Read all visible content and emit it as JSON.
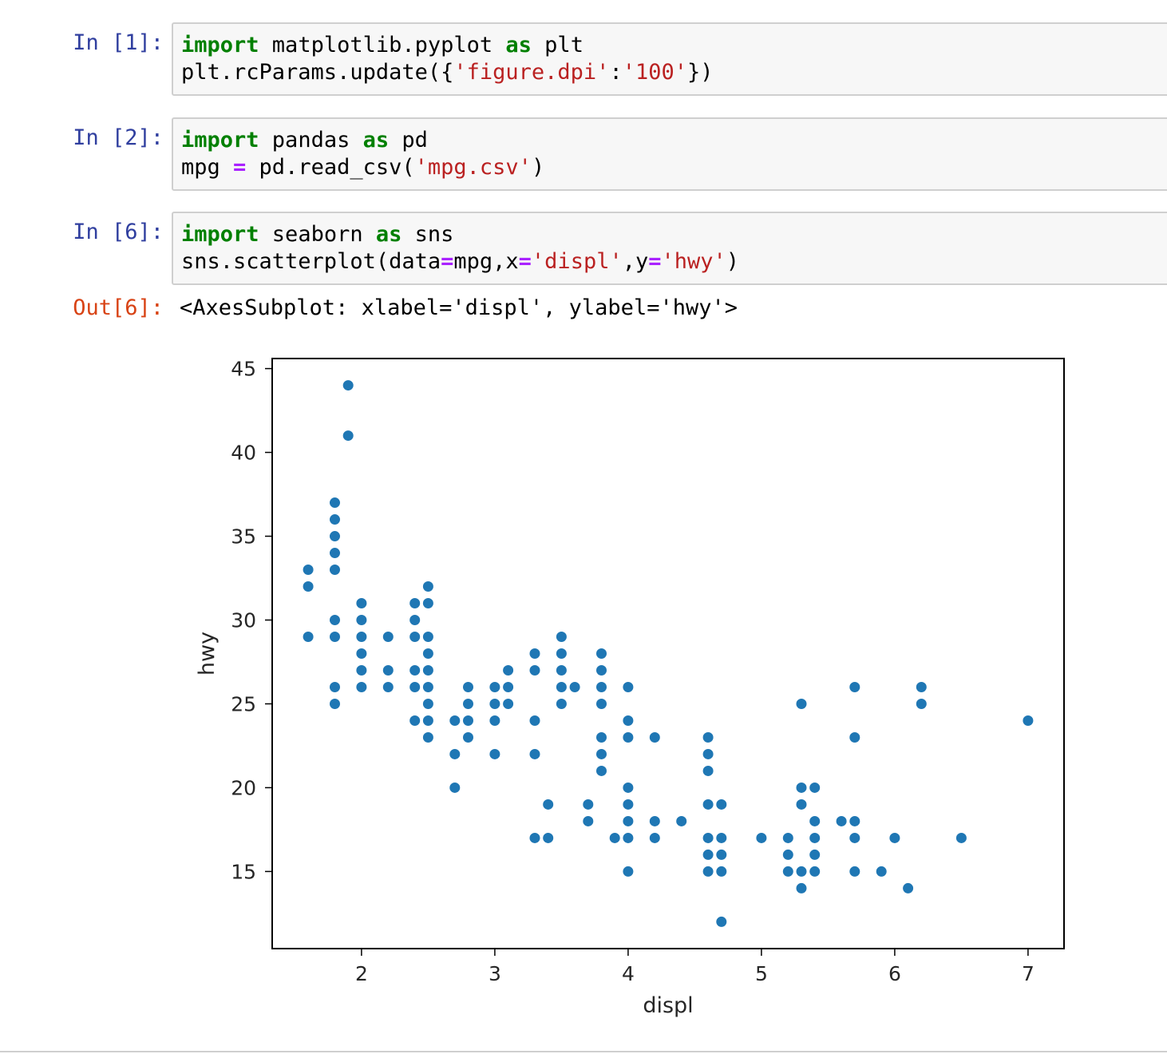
{
  "cells": [
    {
      "prompt": "In [1]:",
      "lines": [
        [
          {
            "t": "kw",
            "v": "import"
          },
          {
            "t": "n",
            "v": " matplotlib.pyplot "
          },
          {
            "t": "kw",
            "v": "as"
          },
          {
            "t": "n",
            "v": " plt"
          }
        ],
        [
          {
            "t": "n",
            "v": "plt.rcParams.update({"
          },
          {
            "t": "str",
            "v": "'figure.dpi'"
          },
          {
            "t": "n",
            "v": ":"
          },
          {
            "t": "str",
            "v": "'100'"
          },
          {
            "t": "n",
            "v": "})"
          }
        ]
      ]
    },
    {
      "prompt": "In [2]:",
      "lines": [
        [
          {
            "t": "kw",
            "v": "import"
          },
          {
            "t": "n",
            "v": " pandas "
          },
          {
            "t": "kw",
            "v": "as"
          },
          {
            "t": "n",
            "v": " pd"
          }
        ],
        [
          {
            "t": "n",
            "v": "mpg "
          },
          {
            "t": "op",
            "v": "="
          },
          {
            "t": "n",
            "v": " pd.read_csv("
          },
          {
            "t": "str",
            "v": "'mpg.csv'"
          },
          {
            "t": "n",
            "v": ")"
          }
        ]
      ]
    },
    {
      "prompt": "In [6]:",
      "lines": [
        [
          {
            "t": "kw",
            "v": "import"
          },
          {
            "t": "n",
            "v": " seaborn "
          },
          {
            "t": "kw",
            "v": "as"
          },
          {
            "t": "n",
            "v": " sns"
          }
        ],
        [
          {
            "t": "n",
            "v": "sns.scatterplot(data"
          },
          {
            "t": "op",
            "v": "="
          },
          {
            "t": "n",
            "v": "mpg,x"
          },
          {
            "t": "op",
            "v": "="
          },
          {
            "t": "str",
            "v": "'displ'"
          },
          {
            "t": "n",
            "v": ",y"
          },
          {
            "t": "op",
            "v": "="
          },
          {
            "t": "str",
            "v": "'hwy'"
          },
          {
            "t": "n",
            "v": ")"
          }
        ]
      ]
    }
  ],
  "output": {
    "prompt": "Out[6]:",
    "text": "<AxesSubplot: xlabel='displ', ylabel='hwy'>"
  },
  "chart_data": {
    "type": "scatter",
    "xlabel": "displ",
    "ylabel": "hwy",
    "xlim": [
      1.33,
      7.27
    ],
    "ylim": [
      10.4,
      45.6
    ],
    "xticks": [
      2,
      3,
      4,
      5,
      6,
      7
    ],
    "yticks": [
      15,
      20,
      25,
      30,
      35,
      40,
      45
    ],
    "grid": false,
    "point_color": "#1f77b4",
    "points": [
      [
        1.6,
        33
      ],
      [
        1.6,
        32
      ],
      [
        1.6,
        29
      ],
      [
        1.8,
        37
      ],
      [
        1.8,
        36
      ],
      [
        1.8,
        35
      ],
      [
        1.8,
        34
      ],
      [
        1.8,
        33
      ],
      [
        1.8,
        30
      ],
      [
        1.8,
        29
      ],
      [
        1.8,
        26
      ],
      [
        1.8,
        25
      ],
      [
        1.9,
        44
      ],
      [
        1.9,
        41
      ],
      [
        2.0,
        31
      ],
      [
        2.0,
        30
      ],
      [
        2.0,
        29
      ],
      [
        2.0,
        28
      ],
      [
        2.0,
        27
      ],
      [
        2.0,
        26
      ],
      [
        2.2,
        29
      ],
      [
        2.2,
        27
      ],
      [
        2.2,
        26
      ],
      [
        2.4,
        31
      ],
      [
        2.4,
        30
      ],
      [
        2.4,
        29
      ],
      [
        2.4,
        27
      ],
      [
        2.4,
        26
      ],
      [
        2.4,
        24
      ],
      [
        2.5,
        32
      ],
      [
        2.5,
        31
      ],
      [
        2.5,
        29
      ],
      [
        2.5,
        28
      ],
      [
        2.5,
        27
      ],
      [
        2.5,
        26
      ],
      [
        2.5,
        25
      ],
      [
        2.5,
        24
      ],
      [
        2.5,
        23
      ],
      [
        2.7,
        24
      ],
      [
        2.7,
        22
      ],
      [
        2.7,
        20
      ],
      [
        2.8,
        26
      ],
      [
        2.8,
        25
      ],
      [
        2.8,
        24
      ],
      [
        2.8,
        23
      ],
      [
        3.0,
        26
      ],
      [
        3.0,
        25
      ],
      [
        3.0,
        24
      ],
      [
        3.0,
        22
      ],
      [
        3.1,
        27
      ],
      [
        3.1,
        26
      ],
      [
        3.1,
        25
      ],
      [
        3.3,
        28
      ],
      [
        3.3,
        27
      ],
      [
        3.3,
        24
      ],
      [
        3.3,
        22
      ],
      [
        3.3,
        17
      ],
      [
        3.4,
        19
      ],
      [
        3.4,
        17
      ],
      [
        3.5,
        29
      ],
      [
        3.5,
        28
      ],
      [
        3.5,
        27
      ],
      [
        3.5,
        26
      ],
      [
        3.5,
        25
      ],
      [
        3.6,
        26
      ],
      [
        3.7,
        19
      ],
      [
        3.7,
        18
      ],
      [
        3.8,
        28
      ],
      [
        3.8,
        27
      ],
      [
        3.8,
        26
      ],
      [
        3.8,
        25
      ],
      [
        3.8,
        23
      ],
      [
        3.8,
        22
      ],
      [
        3.8,
        21
      ],
      [
        3.9,
        17
      ],
      [
        4.0,
        26
      ],
      [
        4.0,
        24
      ],
      [
        4.0,
        23
      ],
      [
        4.0,
        20
      ],
      [
        4.0,
        19
      ],
      [
        4.0,
        18
      ],
      [
        4.0,
        17
      ],
      [
        4.0,
        15
      ],
      [
        4.2,
        23
      ],
      [
        4.2,
        18
      ],
      [
        4.2,
        17
      ],
      [
        4.4,
        18
      ],
      [
        4.6,
        23
      ],
      [
        4.6,
        22
      ],
      [
        4.6,
        21
      ],
      [
        4.6,
        19
      ],
      [
        4.6,
        17
      ],
      [
        4.6,
        16
      ],
      [
        4.6,
        15
      ],
      [
        4.7,
        19
      ],
      [
        4.7,
        17
      ],
      [
        4.7,
        16
      ],
      [
        4.7,
        15
      ],
      [
        4.7,
        12
      ],
      [
        5.0,
        17
      ],
      [
        5.2,
        17
      ],
      [
        5.2,
        16
      ],
      [
        5.2,
        15
      ],
      [
        5.3,
        25
      ],
      [
        5.3,
        20
      ],
      [
        5.3,
        19
      ],
      [
        5.3,
        15
      ],
      [
        5.3,
        14
      ],
      [
        5.4,
        20
      ],
      [
        5.4,
        18
      ],
      [
        5.4,
        17
      ],
      [
        5.4,
        16
      ],
      [
        5.4,
        15
      ],
      [
        5.6,
        18
      ],
      [
        5.7,
        26
      ],
      [
        5.7,
        23
      ],
      [
        5.7,
        18
      ],
      [
        5.7,
        17
      ],
      [
        5.7,
        15
      ],
      [
        5.9,
        15
      ],
      [
        6.0,
        17
      ],
      [
        6.1,
        14
      ],
      [
        6.2,
        26
      ],
      [
        6.2,
        25
      ],
      [
        6.5,
        17
      ],
      [
        7.0,
        24
      ]
    ]
  }
}
